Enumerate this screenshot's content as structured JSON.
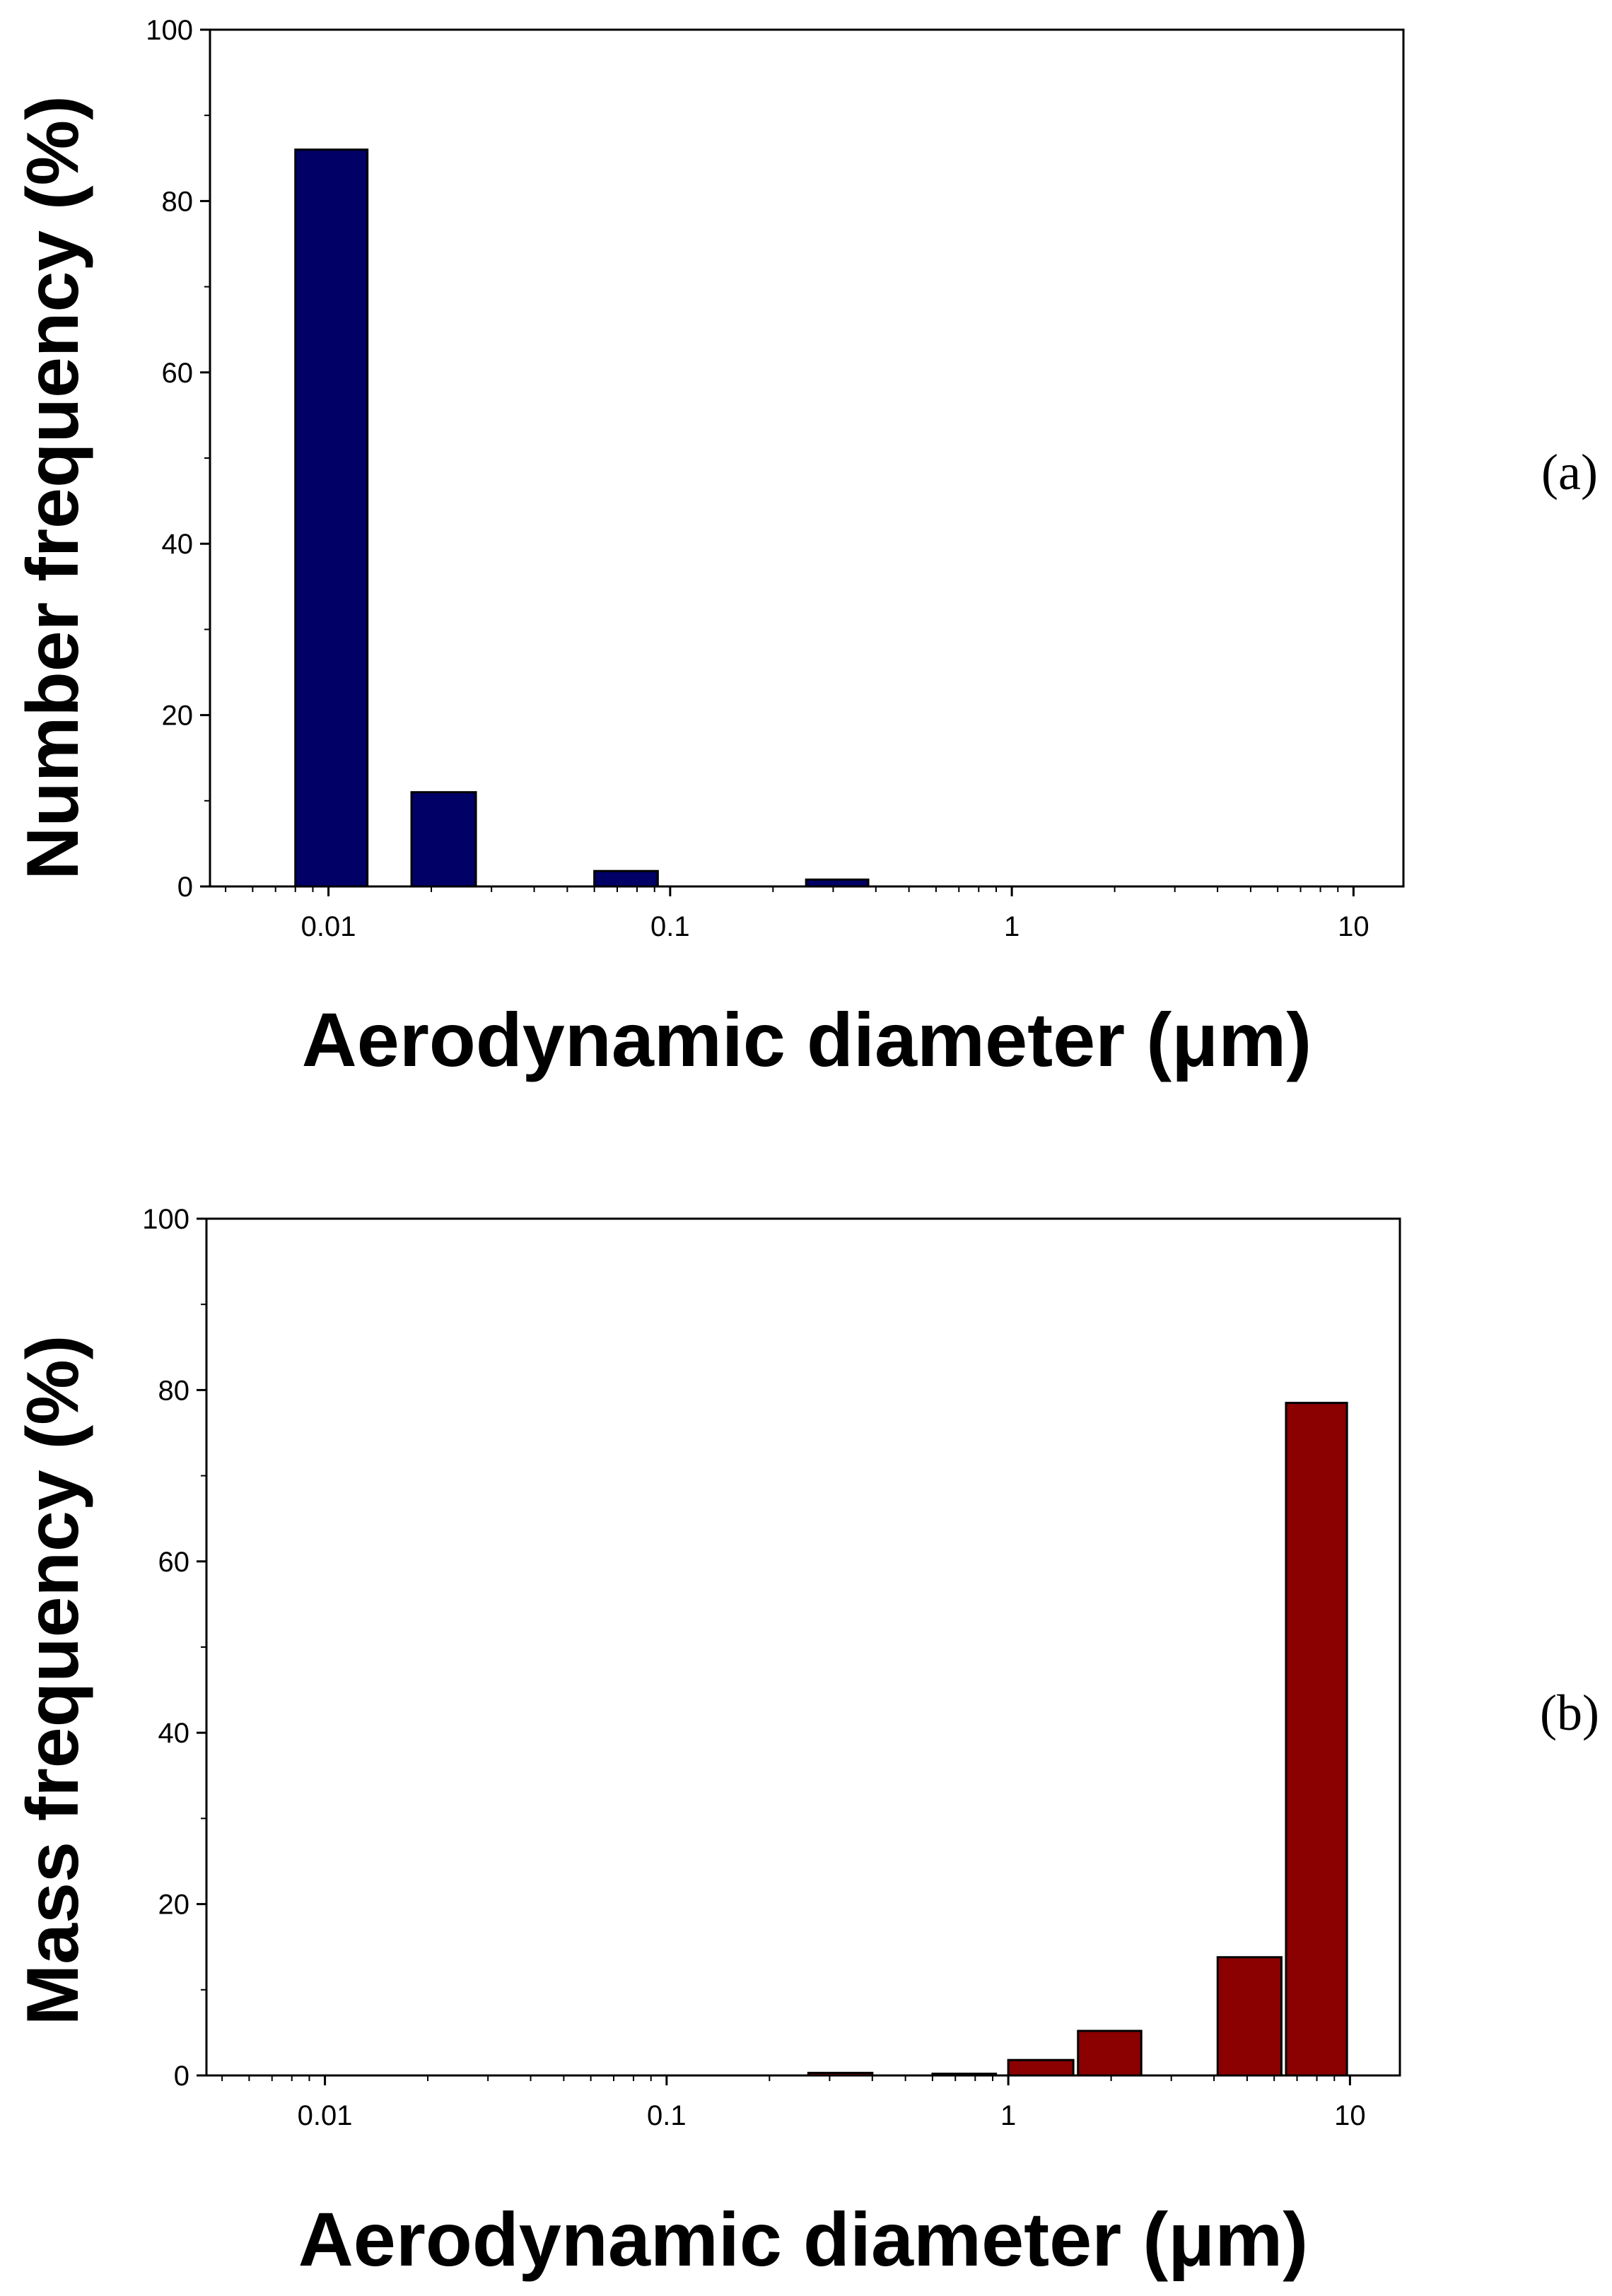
{
  "chart_data": [
    {
      "type": "bar",
      "panel_label": "(a)",
      "xlabel": "Aerodynamic diameter (μm)",
      "ylabel": "Number frequency (%)",
      "xscale": "log",
      "xlim": [
        0.0045,
        14
      ],
      "ylim": [
        0,
        100
      ],
      "yticks": [
        0,
        20,
        40,
        60,
        80,
        100
      ],
      "xticks": [
        0.01,
        0.1,
        1,
        10
      ],
      "xtick_labels": [
        "0.01",
        "0.1",
        "1",
        "10"
      ],
      "bar_color": "#000066",
      "grid": false,
      "bars": [
        {
          "x_low": 0.008,
          "x_high": 0.013,
          "value": 86
        },
        {
          "x_low": 0.0175,
          "x_high": 0.027,
          "value": 11
        },
        {
          "x_low": 0.06,
          "x_high": 0.092,
          "value": 1.8
        },
        {
          "x_low": 0.25,
          "x_high": 0.38,
          "value": 0.8
        }
      ]
    },
    {
      "type": "bar",
      "panel_label": "(b)",
      "xlabel": "Aerodynamic diameter (μm)",
      "ylabel": "Mass frequency (%)",
      "xscale": "log",
      "xlim": [
        0.0045,
        14
      ],
      "ylim": [
        0,
        100
      ],
      "yticks": [
        0,
        20,
        40,
        60,
        80,
        100
      ],
      "xticks": [
        0.01,
        0.1,
        1,
        10
      ],
      "xtick_labels": [
        "0.01",
        "0.1",
        "1",
        "10"
      ],
      "bar_color": "#8b0000",
      "grid": false,
      "bars": [
        {
          "x_low": 0.26,
          "x_high": 0.4,
          "value": 0.3
        },
        {
          "x_low": 0.6,
          "x_high": 0.92,
          "value": 0.2
        },
        {
          "x_low": 1.0,
          "x_high": 1.55,
          "value": 1.8
        },
        {
          "x_low": 1.6,
          "x_high": 2.45,
          "value": 5.2
        },
        {
          "x_low": 4.1,
          "x_high": 6.3,
          "value": 13.8
        },
        {
          "x_low": 6.5,
          "x_high": 9.8,
          "value": 78.5
        }
      ]
    }
  ]
}
